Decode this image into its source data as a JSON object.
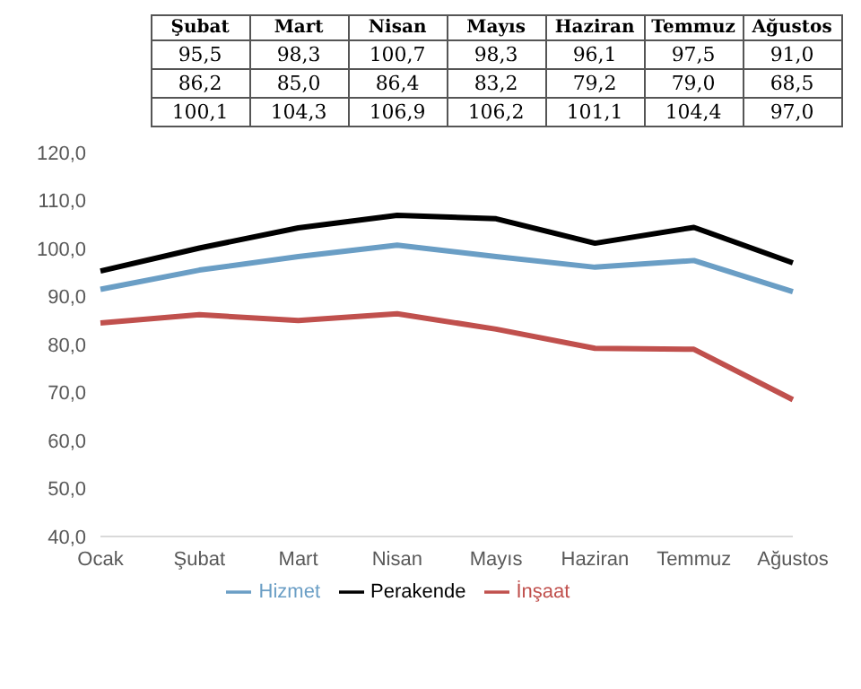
{
  "chart_data": {
    "type": "line",
    "categories": [
      "Ocak",
      "Şubat",
      "Mart",
      "Nisan",
      "Mayıs",
      "Haziran",
      "Temmuz",
      "Ağustos"
    ],
    "series": [
      {
        "name": "Hizmet",
        "color": "#6a9ec5",
        "values": [
          91.5,
          95.5,
          98.3,
          100.7,
          98.3,
          96.1,
          97.5,
          91.0
        ],
        "value_labels": [
          null,
          "95,5",
          "98,3",
          "100,7",
          "98,3",
          "96,1",
          "97,5",
          "91,0"
        ]
      },
      {
        "name": "İnşaat",
        "color": "#c0504d",
        "values": [
          84.5,
          86.2,
          85.0,
          86.4,
          83.2,
          79.2,
          79.0,
          68.5
        ],
        "value_labels": [
          null,
          "86,2",
          "85,0",
          "86,4",
          "83,2",
          "79,2",
          "79,0",
          "68,5"
        ]
      },
      {
        "name": "Perakende",
        "color": "#000000",
        "values": [
          95.3,
          100.1,
          104.3,
          106.9,
          106.2,
          101.1,
          104.4,
          97.0
        ],
        "value_labels": [
          null,
          "100,1",
          "104,3",
          "106,9",
          "106,2",
          "101,1",
          "104,4",
          "97,0"
        ]
      }
    ],
    "ylim": [
      40,
      120
    ],
    "yticks": [
      {
        "value": 40,
        "label": "40,0"
      },
      {
        "value": 50,
        "label": "50,0"
      },
      {
        "value": 60,
        "label": "60,0"
      },
      {
        "value": 70,
        "label": "70,0"
      },
      {
        "value": 80,
        "label": "80,0"
      },
      {
        "value": 90,
        "label": "90,0"
      },
      {
        "value": 100,
        "label": "100,0"
      },
      {
        "value": 110,
        "label": "110,0"
      },
      {
        "value": 120,
        "label": "120,0"
      }
    ],
    "grid": false,
    "legend": "bottom",
    "marker": "none",
    "line_style": "solid"
  }
}
